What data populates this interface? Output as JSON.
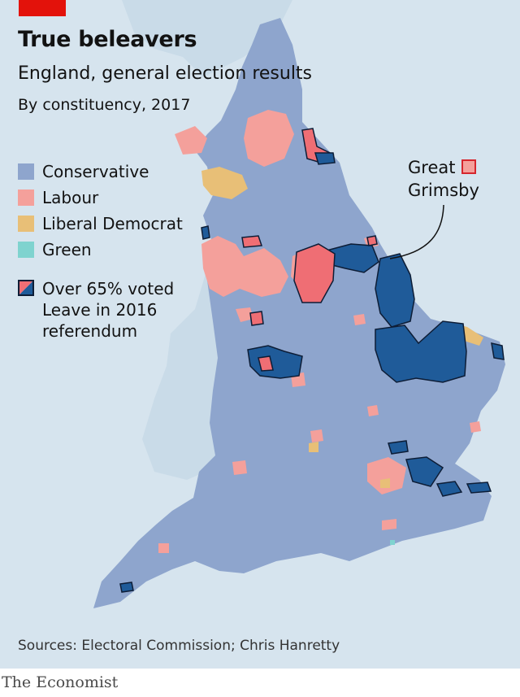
{
  "header": {
    "title": "True beleavers",
    "subtitle": "England, general election results",
    "subtitle2": "By constituency, 2017"
  },
  "legend": {
    "items": [
      {
        "label": "Conservative",
        "color": "#8ea5cd"
      },
      {
        "label": "Labour",
        "color": "#f4a09b"
      },
      {
        "label": "Liberal Democrat",
        "color": "#e8bf77"
      },
      {
        "label": "Green",
        "color": "#7fd3cf"
      }
    ],
    "leave": {
      "label": "Over 65% voted Leave in 2016 referendum",
      "fill_labour": "#ef6e74",
      "fill_conservative": "#1f5b99",
      "outline": "#0d1d36"
    }
  },
  "annotation": {
    "line1": "Great",
    "line2": "Grimsby"
  },
  "colors": {
    "sea": "#d6e4ee",
    "wales_scotland": "#c9dbe8",
    "conservative": "#8ea5cd",
    "labour": "#f4a09b",
    "libdem": "#e8bf77",
    "leave_con": "#1f5b99",
    "leave_lab": "#ef6e74"
  },
  "footer": {
    "source": "Sources: Electoral Commission; Chris Hanretty",
    "brand": "The Economist"
  }
}
